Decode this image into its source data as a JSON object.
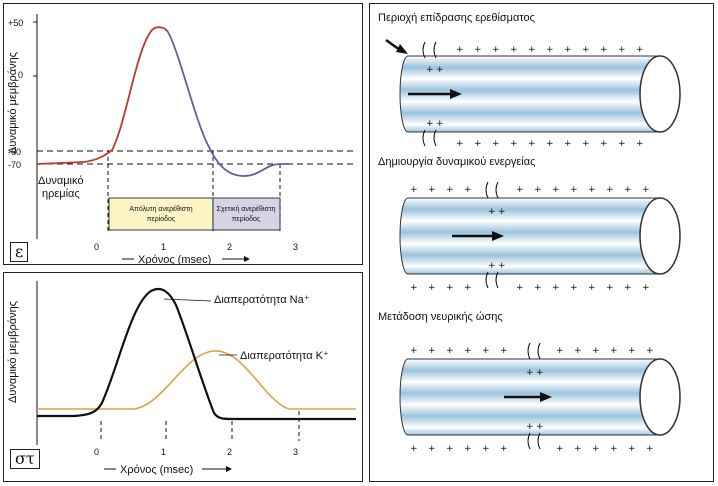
{
  "top_chart": {
    "ylabel": "Δυναμικό μεμβράνης",
    "xlabel": "Χρόνος (msec)",
    "panel_label": "ε",
    "resting_label_1": "Δυναμικό",
    "resting_label_2": "ηρεμίας",
    "y_ticks": [
      "+50",
      "0",
      "-60",
      "-70"
    ],
    "x_ticks": [
      "0",
      "1",
      "2",
      "3"
    ],
    "absolute_refractory_1": "Απόλυτη ανερέθιστη",
    "absolute_refractory_2": "περίοδος",
    "relative_refractory_1": "Σχετική ανερέθιστη",
    "relative_refractory_2": "περίοδος",
    "colors": {
      "rise": "#c0392b",
      "fall": "#6c5a9c",
      "absolute_box": "#fbf4c4",
      "relative_box": "#d7d3e6"
    }
  },
  "bottom_chart": {
    "ylabel": "Δυναμικό μεμβράνης",
    "xlabel": "Χρόνος (msec)",
    "panel_label": "στ",
    "x_ticks": [
      "0",
      "1",
      "2",
      "3"
    ],
    "na_label": "Διαπερατότητα Na⁺",
    "k_label": "Διαπερατότητα K⁺",
    "colors": {
      "na": "#111111",
      "k": "#e0a040"
    }
  },
  "right_panel": {
    "stage1_title": "Περιοχή επίδρασης ερεθίσματος",
    "stage2_title": "Δημιουργία δυναμικού ενεργείας",
    "stage3_title": "Μετάδοση νευρικής ώσης",
    "plus": "+",
    "colors": {
      "axon_stripe": "#9cc3de",
      "axon_light": "#ffffff",
      "outline": "#333333"
    }
  },
  "chart_data": [
    {
      "type": "line",
      "title": "",
      "xlabel": "Χρόνος (msec)",
      "ylabel": "Δυναμικό μεμβράνης",
      "x_ticks": [
        0,
        1,
        2,
        3
      ],
      "y_ticks": [
        50,
        0,
        -60,
        -70
      ],
      "series": [
        {
          "x": [
            -1.0,
            -0.5,
            0.2,
            0.5,
            0.8,
            1.0,
            1.2,
            1.5,
            1.8,
            2.1,
            2.4,
            2.8
          ],
          "y": [
            -70,
            -70,
            -60,
            0,
            40,
            40,
            10,
            -40,
            -60,
            -73,
            -73,
            -70
          ]
        }
      ]
    },
    {
      "type": "line",
      "title": "",
      "xlabel": "Χρόνος (msec)",
      "ylabel": "Δυναμικό μεμβράνης",
      "x_ticks": [
        0,
        1,
        2,
        3
      ],
      "series": [
        {
          "name": "Διαπερατότητα Na⁺",
          "x": [
            -1.0,
            0.0,
            0.4,
            0.9,
            1.2,
            1.7,
            2.0,
            3.8
          ],
          "y": [
            0,
            0.05,
            0.6,
            1.0,
            0.7,
            0.05,
            0,
            0
          ]
        },
        {
          "name": "Διαπερατότητα K⁺",
          "x": [
            -1.0,
            0.5,
            1.2,
            1.8,
            2.4,
            2.9,
            3.8
          ],
          "y": [
            0.05,
            0.05,
            0.2,
            0.51,
            0.2,
            0.05,
            0.05
          ]
        }
      ]
    }
  ]
}
